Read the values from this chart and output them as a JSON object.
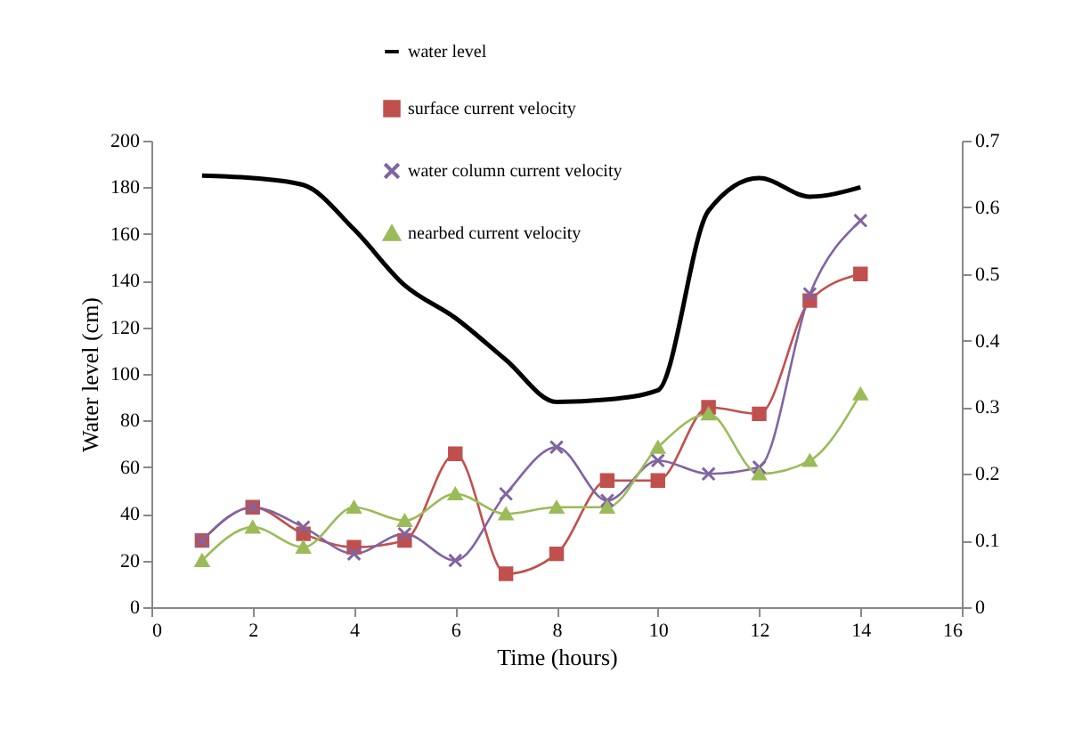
{
  "chart_data": {
    "type": "line",
    "xlabel": "Time (hours)",
    "ylabel": "Water level (cm)",
    "x": [
      1,
      2,
      3,
      4,
      5,
      6,
      7,
      8,
      9,
      10,
      11,
      12,
      13,
      14
    ],
    "xlim": [
      0,
      16
    ],
    "xticks": [
      0,
      2,
      4,
      6,
      8,
      10,
      12,
      14,
      16
    ],
    "ylim": [
      0,
      200
    ],
    "yticks": [
      0,
      20,
      40,
      60,
      80,
      100,
      120,
      140,
      160,
      180,
      200
    ],
    "y2lim": [
      0,
      0.7
    ],
    "y2ticks": [
      0,
      0.1,
      0.2,
      0.3,
      0.4,
      0.5,
      0.6,
      0.7
    ],
    "legend": "top",
    "grid": false,
    "series": [
      {
        "name": "water level",
        "color": "#000000",
        "marker": "none",
        "values": [
          185,
          184,
          181,
          162,
          138,
          124,
          106,
          88,
          89,
          93,
          170,
          184,
          176,
          180
        ]
      },
      {
        "name": "surface current velocity",
        "color": "#c0504d",
        "marker": "square",
        "axis": "y2",
        "values": [
          0.1,
          0.15,
          0.11,
          0.09,
          0.1,
          0.23,
          0.05,
          0.08,
          0.19,
          0.19,
          0.3,
          0.29,
          0.46,
          0.5
        ]
      },
      {
        "name": "water column current velocity",
        "color": "#8064a2",
        "marker": "cross",
        "axis": "y2",
        "values": [
          0.1,
          0.15,
          0.12,
          0.08,
          0.11,
          0.07,
          0.17,
          0.24,
          0.16,
          0.22,
          0.2,
          0.21,
          0.47,
          0.58
        ]
      },
      {
        "name": "nearbed current velocity",
        "color": "#9bbb59",
        "marker": "triangle",
        "axis": "y2",
        "values": [
          0.07,
          0.12,
          0.09,
          0.15,
          0.13,
          0.17,
          0.14,
          0.15,
          0.15,
          0.24,
          0.29,
          0.2,
          0.22,
          0.32
        ]
      }
    ]
  }
}
